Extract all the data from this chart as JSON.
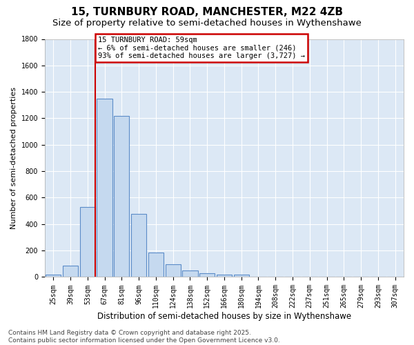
{
  "title": "15, TURNBURY ROAD, MANCHESTER, M22 4ZB",
  "subtitle": "Size of property relative to semi-detached houses in Wythenshawe",
  "xlabel": "Distribution of semi-detached houses by size in Wythenshawe",
  "ylabel": "Number of semi-detached properties",
  "bin_labels": [
    "25sqm",
    "39sqm",
    "53sqm",
    "67sqm",
    "81sqm",
    "96sqm",
    "110sqm",
    "124sqm",
    "138sqm",
    "152sqm",
    "166sqm",
    "180sqm",
    "194sqm",
    "208sqm",
    "222sqm",
    "237sqm",
    "251sqm",
    "265sqm",
    "279sqm",
    "293sqm",
    "307sqm"
  ],
  "bar_values": [
    20,
    85,
    530,
    1350,
    1220,
    475,
    185,
    95,
    50,
    30,
    20,
    20,
    5,
    0,
    0,
    0,
    0,
    0,
    0,
    0,
    0
  ],
  "bar_color": "#c5d9ef",
  "bar_edge_color": "#5b8cc8",
  "vline_bin_index": 2,
  "annotation_title": "15 TURNBURY ROAD: 59sqm",
  "annotation_line1": "← 6% of semi-detached houses are smaller (246)",
  "annotation_line2": "93% of semi-detached houses are larger (3,727) →",
  "annotation_box_color": "#ffffff",
  "annotation_box_edge": "#cc0000",
  "vline_color": "#cc0000",
  "ylim": [
    0,
    1800
  ],
  "yticks": [
    0,
    200,
    400,
    600,
    800,
    1000,
    1200,
    1400,
    1600,
    1800
  ],
  "bg_color": "#dce8f5",
  "footer": "Contains HM Land Registry data © Crown copyright and database right 2025.\nContains public sector information licensed under the Open Government Licence v3.0.",
  "title_fontsize": 11,
  "subtitle_fontsize": 9.5,
  "xlabel_fontsize": 8.5,
  "ylabel_fontsize": 8,
  "tick_fontsize": 7,
  "footer_fontsize": 6.5
}
